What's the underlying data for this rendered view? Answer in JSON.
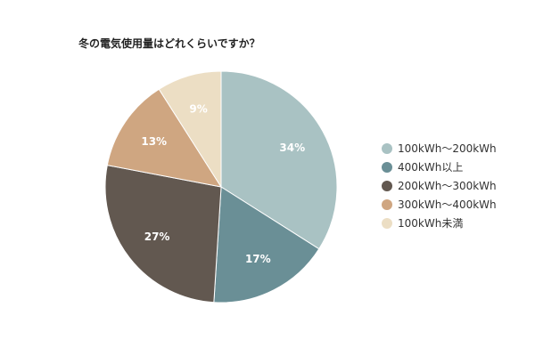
{
  "chart_data": {
    "type": "pie",
    "title": "冬の電気使用量はどれくらいですか？",
    "legend_position": "right",
    "slices": [
      {
        "label": "100kWh～200kWh",
        "value": 34,
        "display": "34%",
        "color": "#a9c2c3"
      },
      {
        "label": "400kWh以上",
        "value": 17,
        "display": "17%",
        "color": "#6a8f96"
      },
      {
        "label": "200kWh～300kWh",
        "value": 27,
        "display": "27%",
        "color": "#625850"
      },
      {
        "label": "300kWh～400kWh",
        "value": 13,
        "display": "13%",
        "color": "#cfa681"
      },
      {
        "label": "100kWh未満",
        "value": 9,
        "display": "9%",
        "color": "#ecdec4"
      }
    ]
  }
}
